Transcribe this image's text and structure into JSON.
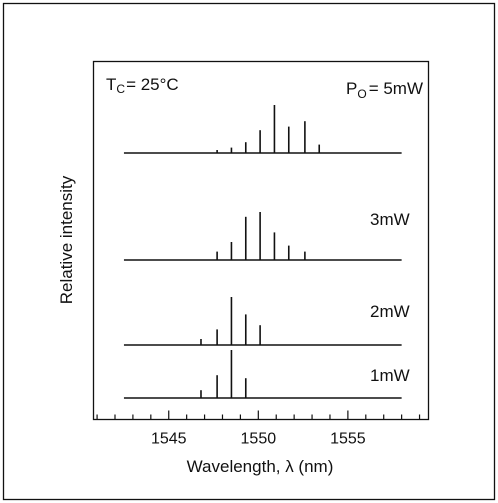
{
  "chart_data": {
    "type": "bar",
    "description_free": true,
    "condition_label": "T",
    "condition_sub": "C",
    "condition_value": "= 25°C",
    "power_label": "P",
    "power_sub": "O",
    "xlabel": "Wavelength, λ  (nm)",
    "ylabel": "Relative intensity",
    "xlim": [
      1540.8,
      1559.5
    ],
    "xticks": [
      "1545",
      "1550",
      "1555"
    ],
    "xtick_values": [
      1545,
      1550,
      1555
    ],
    "minor_step": 1,
    "spectra": [
      {
        "label": "= 5mW",
        "lines": [
          {
            "wavelength": 1547.7,
            "intensity": 0.05
          },
          {
            "wavelength": 1548.5,
            "intensity": 0.09
          },
          {
            "wavelength": 1549.3,
            "intensity": 0.18
          },
          {
            "wavelength": 1550.1,
            "intensity": 0.38
          },
          {
            "wavelength": 1550.9,
            "intensity": 0.8
          },
          {
            "wavelength": 1551.7,
            "intensity": 0.44
          },
          {
            "wavelength": 1552.6,
            "intensity": 0.53
          },
          {
            "wavelength": 1553.4,
            "intensity": 0.14
          }
        ]
      },
      {
        "label": "3mW",
        "lines": [
          {
            "wavelength": 1547.7,
            "intensity": 0.14
          },
          {
            "wavelength": 1548.5,
            "intensity": 0.3
          },
          {
            "wavelength": 1549.3,
            "intensity": 0.72
          },
          {
            "wavelength": 1550.1,
            "intensity": 0.8
          },
          {
            "wavelength": 1550.9,
            "intensity": 0.46
          },
          {
            "wavelength": 1551.7,
            "intensity": 0.24
          },
          {
            "wavelength": 1552.6,
            "intensity": 0.14
          }
        ]
      },
      {
        "label": "2mW",
        "lines": [
          {
            "wavelength": 1546.8,
            "intensity": 0.1
          },
          {
            "wavelength": 1547.7,
            "intensity": 0.26
          },
          {
            "wavelength": 1548.5,
            "intensity": 0.8
          },
          {
            "wavelength": 1549.3,
            "intensity": 0.51
          },
          {
            "wavelength": 1550.1,
            "intensity": 0.33
          }
        ]
      },
      {
        "label": "1mW",
        "lines": [
          {
            "wavelength": 1546.8,
            "intensity": 0.13
          },
          {
            "wavelength": 1547.7,
            "intensity": 0.38
          },
          {
            "wavelength": 1548.5,
            "intensity": 0.8
          },
          {
            "wavelength": 1549.3,
            "intensity": 0.33
          }
        ]
      }
    ]
  }
}
